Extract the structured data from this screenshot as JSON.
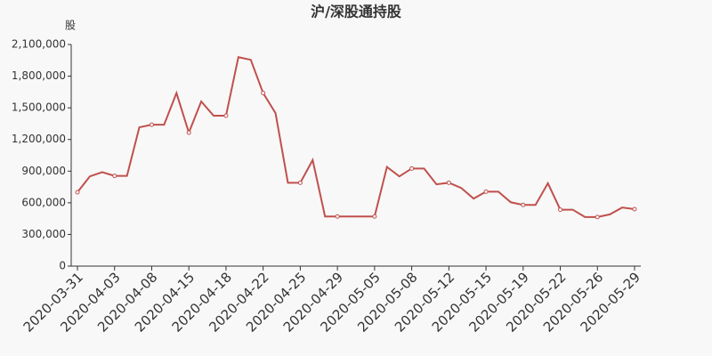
{
  "chart_data": {
    "type": "line",
    "title": "沪/深股通持股",
    "y_label": "股",
    "categories": [
      "2020-03-31",
      null,
      null,
      "2020-04-03",
      null,
      null,
      "2020-04-08",
      null,
      null,
      "2020-04-15",
      null,
      null,
      "2020-04-18",
      null,
      null,
      "2020-04-22",
      null,
      null,
      "2020-04-25",
      null,
      null,
      "2020-04-29",
      null,
      null,
      "2020-05-05",
      null,
      null,
      "2020-05-08",
      null,
      null,
      "2020-05-12",
      null,
      null,
      "2020-05-15",
      null,
      null,
      "2020-05-19",
      null,
      null,
      "2020-05-22",
      null,
      null,
      "2020-05-26",
      null,
      null,
      "2020-05-29"
    ],
    "series": [
      {
        "color": "#c0504d",
        "values": [
          700000,
          850000,
          890000,
          855000,
          855000,
          1315000,
          1340000,
          1340000,
          1640000,
          1265000,
          1560000,
          1425000,
          1425000,
          1980000,
          1955000,
          1640000,
          1450000,
          790000,
          790000,
          1005000,
          470000,
          470000,
          470000,
          470000,
          470000,
          940000,
          850000,
          925000,
          925000,
          775000,
          790000,
          740000,
          640000,
          705000,
          705000,
          605000,
          580000,
          580000,
          785000,
          535000,
          535000,
          465000,
          465000,
          490000,
          555000,
          540000
        ]
      }
    ],
    "ylim": [
      0,
      2100000
    ],
    "yticks": [
      0,
      {
        "value": 300000,
        "label": "300,000"
      },
      {
        "value": 600000,
        "label": "600,000"
      },
      {
        "value": 900000,
        "label": "900,000"
      },
      {
        "value": 1200000,
        "label": "1,200,000"
      },
      {
        "value": 1500000,
        "label": "1,500,000"
      },
      {
        "value": 1800000,
        "label": "1,800,000"
      },
      {
        "value": 2100000,
        "label": "2,100,000"
      }
    ]
  }
}
